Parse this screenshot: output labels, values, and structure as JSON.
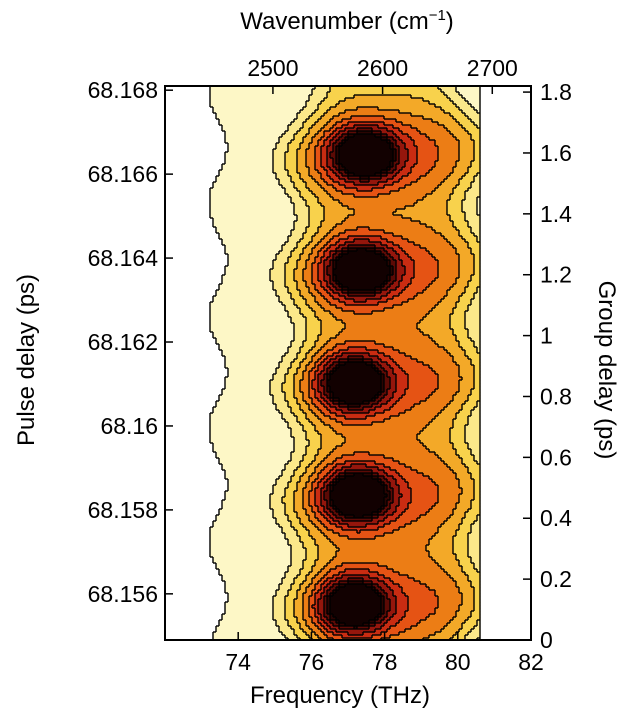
{
  "chart_data": {
    "type": "heatmap",
    "subtype": "filled-contour",
    "colormap": "hot-reversed (white to yellow to orange to red to black)",
    "contour_lines": "black",
    "grid": false,
    "x_axis_bottom": {
      "title": "Frequency (THz)",
      "range": [
        72,
        82
      ],
      "ticks": [
        "74",
        "76",
        "78",
        "80",
        "82"
      ],
      "tick_values": [
        74,
        76,
        78,
        80,
        82
      ]
    },
    "x_axis_top": {
      "title_main": "Wavenumber (cm",
      "title_sup": "−1",
      "title_end": ")",
      "range": [
        2401.6,
        2735.3
      ],
      "ticks": [
        "2500",
        "2600",
        "2700"
      ],
      "tick_values": [
        2500,
        2600,
        2700
      ]
    },
    "y_axis_left": {
      "title": "Pulse delay (ps)",
      "range": [
        68.1549,
        68.1681
      ],
      "ticks": [
        "68.156",
        "68.158",
        "68.16",
        "68.162",
        "68.164",
        "68.166",
        "68.168"
      ],
      "tick_values": [
        68.156,
        68.158,
        68.16,
        68.162,
        68.164,
        68.166,
        68.168
      ]
    },
    "y_axis_right": {
      "title": "Group delay (ps)",
      "range": [
        0,
        1.82
      ],
      "ticks": [
        "0",
        "0.2",
        "0.4",
        "0.6",
        "0.8",
        "1",
        "1.2",
        "1.4",
        "1.6",
        "1.8"
      ],
      "tick_values": [
        0,
        0.2,
        0.4,
        0.6,
        0.8,
        1.0,
        1.2,
        1.4,
        1.6,
        1.8
      ]
    },
    "peaks": [
      {
        "frequency_THz": 77.1,
        "group_delay_ps": 0.12
      },
      {
        "frequency_THz": 77.2,
        "group_delay_ps": 0.48
      },
      {
        "frequency_THz": 77.1,
        "group_delay_ps": 0.85
      },
      {
        "frequency_THz": 77.3,
        "group_delay_ps": 1.22
      },
      {
        "frequency_THz": 77.4,
        "group_delay_ps": 1.6
      }
    ],
    "signal_band_THz": [
      73.4,
      80.6
    ]
  }
}
